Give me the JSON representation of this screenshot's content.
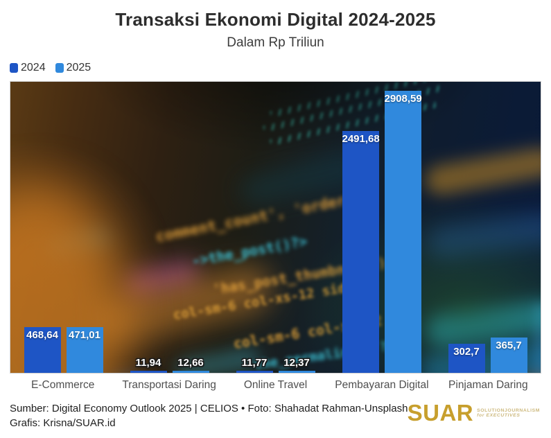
{
  "header": {
    "title": "Transaksi Ekonomi Digital 2024-2025",
    "subtitle": "Dalam Rp Triliun"
  },
  "legend": [
    {
      "label": "2024",
      "color": "#1e55c5"
    },
    {
      "label": "2025",
      "color": "#3089dd"
    }
  ],
  "chart_data": {
    "type": "bar",
    "title": "Transaksi Ekonomi Digital 2024-2025",
    "subtitle": "Dalam Rp Triliun",
    "unit": "Rp Triliun",
    "categories": [
      "E-Commerce",
      "Transportasi Daring",
      "Online Travel",
      "Pembayaran Digital",
      "Pinjaman Daring"
    ],
    "series": [
      {
        "name": "2024",
        "color": "#1e55c5",
        "values": [
          468.64,
          11.94,
          11.77,
          2491.68,
          302.7
        ]
      },
      {
        "name": "2025",
        "color": "#3089dd",
        "values": [
          471.01,
          12.66,
          12.37,
          2908.59,
          365.7
        ]
      }
    ],
    "value_labels": [
      [
        "468,64",
        "11,94",
        "11,77",
        "2491,68",
        "302,7"
      ],
      [
        "471,01",
        "12,66",
        "12,37",
        "2908,59",
        "365,7"
      ]
    ],
    "xlabel": "",
    "ylabel": "",
    "ylim": [
      0,
      2908.59
    ],
    "grid": false,
    "legend_position": "top-left",
    "background": "blurred photo of program code on a screen"
  },
  "background_code_lines": [
    {
      "text": "comment_count', 'order'",
      "color": "#e6a33c"
    },
    {
      "text": "->the_post()?>",
      "color": "#3ecbe0"
    },
    {
      "text": "'has_post_thumbnail')",
      "color": "#e6a33c"
    },
    {
      "text": "col-sm-6 col-xs-12 sidebar",
      "color": "#e2a238"
    },
    {
      "text": "col-sm-6 col-xs-12 s",
      "color": "#e2a238"
    },
    {
      "text": "the_permalink() ?>",
      "color": "#3ecbe0"
    }
  ],
  "footer": {
    "line1": "Sumber: Digital Economy Outlook 2025 | CELIOS • Foto: Shahadat Rahman-Unsplash",
    "line2": "Grafis: Krisna/SUAR.id",
    "logo": {
      "text": "SUAR",
      "tagline_line1": "SOLUTIONJOURNALISM",
      "tagline_line2": "for EXECUTIVES",
      "color": "#c79f2d",
      "tagline_color": "#cdb97e"
    }
  }
}
